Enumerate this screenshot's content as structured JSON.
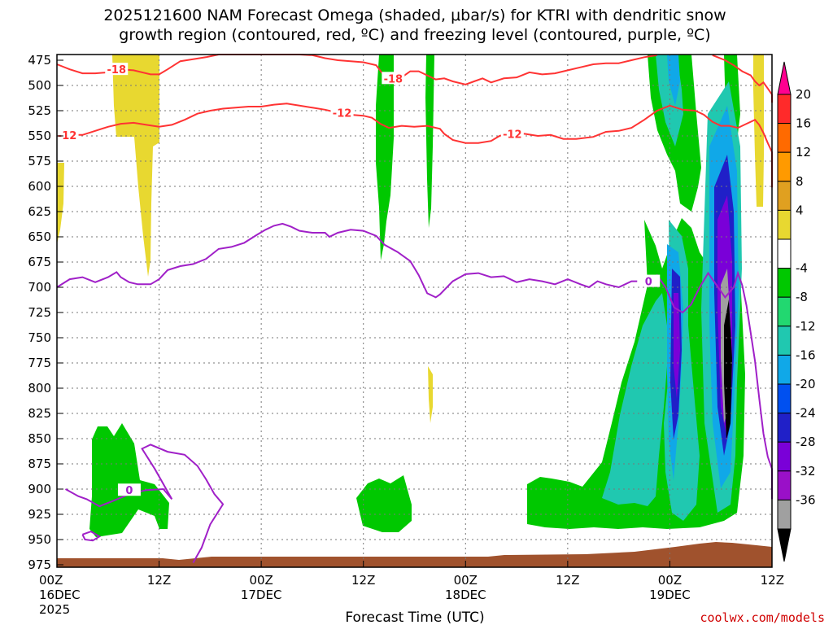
{
  "title": {
    "line1": "2025121600 NAM Forecast Omega (shaded, μbar/s) for KTRI with dendritic snow",
    "line2": "growth region (contoured, red, ºC) and freezing level (contoured, purple, ºC)"
  },
  "credit": "coolwx.com/models",
  "chart_data": {
    "type": "heatmap",
    "title": "2025121600 NAM Forecast Omega (shaded, μbar/s) for KTRI with dendritic snow growth region (contoured, red, ºC) and freezing level (contoured, purple, ºC)",
    "xlabel": "Forecast Time (UTC)",
    "ylabel": "Pressure (mb)",
    "x_range_hours": [
      0,
      84
    ],
    "y_range_mb": [
      975,
      475
    ],
    "y_ticks": [
      "475",
      "500",
      "525",
      "550",
      "575",
      "600",
      "625",
      "650",
      "675",
      "700",
      "725",
      "750",
      "775",
      "800",
      "825",
      "850",
      "875",
      "900",
      "925",
      "950",
      "975"
    ],
    "x_ticks": [
      {
        "hour": 0,
        "label": "00Z",
        "sub": "16DEC",
        "sub2": "2025"
      },
      {
        "hour": 12,
        "label": "12Z",
        "sub": "",
        "sub2": ""
      },
      {
        "hour": 24,
        "label": "00Z",
        "sub": "17DEC",
        "sub2": ""
      },
      {
        "hour": 36,
        "label": "12Z",
        "sub": "",
        "sub2": ""
      },
      {
        "hour": 48,
        "label": "00Z",
        "sub": "18DEC",
        "sub2": ""
      },
      {
        "hour": 60,
        "label": "12Z",
        "sub": "",
        "sub2": ""
      },
      {
        "hour": 72,
        "label": "00Z",
        "sub": "19DEC",
        "sub2": ""
      },
      {
        "hour": 84,
        "label": "12Z",
        "sub": "",
        "sub2": ""
      }
    ],
    "colorbar": {
      "labels": [
        "20",
        "16",
        "12",
        "8",
        "4",
        "-4",
        "-8",
        "-12",
        "-16",
        "-20",
        "-24",
        "-28",
        "-32",
        "-36"
      ],
      "colors": [
        "#ff0090",
        "#ff2a2a",
        "#ff6a00",
        "#ff9a00",
        "#e0a020",
        "#e8d830",
        "#ffffff",
        "#00c800",
        "#22d870",
        "#20c8b0",
        "#10a8e8",
        "#0050f0",
        "#2020c8",
        "#7a00d8",
        "#9a10c8",
        "#a0a0a0",
        "#000000"
      ]
    },
    "contours": {
      "dendritic_minus18": {
        "color": "#ff3333",
        "label": "-18",
        "points": [
          [
            0,
            479
          ],
          [
            1.5,
            484
          ],
          [
            3,
            488
          ],
          [
            4.5,
            488
          ],
          [
            6,
            487
          ],
          [
            7.5,
            484
          ],
          [
            9,
            485
          ],
          [
            11,
            489
          ],
          [
            12,
            489
          ],
          [
            13,
            484
          ],
          [
            14.5,
            476
          ],
          [
            16,
            474
          ],
          [
            17.5,
            472
          ],
          [
            19,
            469
          ],
          [
            21,
            466
          ],
          [
            22.5,
            466
          ],
          [
            24,
            466
          ],
          [
            25.5,
            467
          ],
          [
            27,
            466
          ],
          [
            28.5,
            467
          ],
          [
            30,
            470
          ],
          [
            31.5,
            473
          ],
          [
            33,
            475
          ],
          [
            34.5,
            476
          ],
          [
            36,
            477
          ],
          [
            37.5,
            480
          ],
          [
            38.5,
            491
          ],
          [
            39.5,
            495
          ],
          [
            40.5,
            492
          ],
          [
            41.5,
            486
          ],
          [
            42.5,
            486
          ],
          [
            43.5,
            490
          ],
          [
            44.5,
            494
          ],
          [
            45.5,
            493
          ],
          [
            46.5,
            496
          ],
          [
            48,
            499
          ],
          [
            49,
            496
          ],
          [
            50,
            493
          ],
          [
            51,
            497
          ],
          [
            52.5,
            493
          ],
          [
            54,
            492
          ],
          [
            55.5,
            487
          ],
          [
            57,
            489
          ],
          [
            58.5,
            488
          ],
          [
            60,
            485
          ],
          [
            61.5,
            482
          ],
          [
            63,
            479
          ],
          [
            64.5,
            478
          ],
          [
            66,
            478
          ],
          [
            67.5,
            475
          ],
          [
            69,
            472
          ],
          [
            70.5,
            470
          ]
        ],
        "label_at": [
          7,
          484
        ]
      },
      "dendritic_minus18_right": {
        "color": "#ff3333",
        "label": "",
        "points": [
          [
            77,
            470
          ],
          [
            78.5,
            475
          ],
          [
            79.5,
            480
          ],
          [
            80.5,
            486
          ],
          [
            81.5,
            490
          ],
          [
            82,
            496
          ],
          [
            82.5,
            500
          ],
          [
            83,
            497
          ],
          [
            83.5,
            503
          ],
          [
            84,
            509
          ],
          [
            84.5,
            514
          ],
          [
            85,
            516
          ],
          [
            85.5,
            517
          ]
        ],
        "label_at": []
      },
      "dendritic_minus12": {
        "color": "#ff3333",
        "label": "-12",
        "points": [
          [
            0,
            550
          ],
          [
            1.5,
            549
          ],
          [
            3,
            549
          ],
          [
            4.5,
            545
          ],
          [
            6,
            541
          ],
          [
            7.5,
            538
          ],
          [
            9,
            537
          ],
          [
            10.5,
            539
          ],
          [
            12,
            541
          ],
          [
            13.5,
            539
          ],
          [
            15,
            534
          ],
          [
            16.5,
            528
          ],
          [
            18,
            525
          ],
          [
            19.5,
            523
          ],
          [
            21,
            522
          ],
          [
            22.5,
            521
          ],
          [
            24,
            521
          ],
          [
            25.5,
            519
          ],
          [
            27,
            518
          ],
          [
            28.5,
            520
          ],
          [
            30,
            522
          ],
          [
            31.5,
            524
          ],
          [
            33,
            527
          ],
          [
            34.5,
            529
          ],
          [
            36,
            530
          ],
          [
            37,
            532
          ],
          [
            38,
            538
          ],
          [
            39,
            542
          ],
          [
            40.5,
            540
          ],
          [
            42,
            541
          ],
          [
            43.5,
            540
          ],
          [
            45,
            543
          ],
          [
            45.5,
            548
          ],
          [
            46.5,
            554
          ],
          [
            48,
            557
          ],
          [
            49.5,
            557
          ],
          [
            51,
            555
          ],
          [
            52,
            550
          ],
          [
            53.5,
            547
          ],
          [
            55,
            548
          ],
          [
            56.5,
            550
          ],
          [
            58,
            549
          ],
          [
            59.5,
            553
          ],
          [
            61,
            553
          ],
          [
            63,
            551
          ],
          [
            64.5,
            546
          ],
          [
            66,
            545
          ],
          [
            67.5,
            542
          ],
          [
            69,
            534
          ],
          [
            70.5,
            525
          ],
          [
            72,
            520
          ],
          [
            73.5,
            524
          ],
          [
            75,
            525
          ],
          [
            76,
            529
          ],
          [
            77,
            536
          ],
          [
            78,
            540
          ],
          [
            79,
            540
          ],
          [
            80,
            542
          ],
          [
            81,
            538
          ],
          [
            82,
            534
          ],
          [
            82.5,
            539
          ],
          [
            83,
            547
          ],
          [
            83.5,
            557
          ],
          [
            84,
            566
          ],
          [
            84.5,
            581
          ],
          [
            85,
            599
          ],
          [
            85.5,
            601
          ],
          [
            86,
            598
          ]
        ],
        "label_at": [
          33.5,
          527
        ]
      },
      "freezing_level_main": {
        "color": "#a020c8",
        "label": "0",
        "points": [
          [
            0,
            700
          ],
          [
            1.5,
            692
          ],
          [
            3,
            690
          ],
          [
            4.5,
            695
          ],
          [
            6,
            690
          ],
          [
            7,
            685
          ],
          [
            7.5,
            690
          ],
          [
            8.5,
            695
          ],
          [
            9.5,
            697
          ],
          [
            11,
            697
          ],
          [
            12,
            692
          ],
          [
            13,
            683
          ],
          [
            14.5,
            679
          ],
          [
            16,
            677
          ],
          [
            17.5,
            672
          ],
          [
            19,
            662
          ],
          [
            20.5,
            660
          ],
          [
            22,
            656
          ],
          [
            23.5,
            648
          ],
          [
            24.5,
            643
          ],
          [
            25.5,
            639
          ],
          [
            26.5,
            637
          ],
          [
            27.5,
            640
          ],
          [
            28.5,
            644
          ],
          [
            30,
            646
          ],
          [
            31.5,
            646
          ],
          [
            32,
            650
          ],
          [
            33,
            646
          ],
          [
            34.5,
            643
          ],
          [
            36,
            644
          ],
          [
            37.5,
            649
          ],
          [
            38.5,
            658
          ],
          [
            40,
            665
          ],
          [
            41.5,
            674
          ],
          [
            42.5,
            688
          ],
          [
            43.5,
            706
          ],
          [
            44.5,
            710
          ],
          [
            45,
            707
          ],
          [
            46.5,
            694
          ],
          [
            48,
            687
          ],
          [
            49.5,
            686
          ],
          [
            51,
            690
          ],
          [
            52.5,
            689
          ],
          [
            54,
            695
          ],
          [
            55.5,
            692
          ],
          [
            57,
            694
          ],
          [
            58.5,
            697
          ],
          [
            60,
            692
          ],
          [
            61.5,
            697
          ],
          [
            62.5,
            700
          ],
          [
            63.5,
            694
          ],
          [
            64.5,
            697
          ],
          [
            66,
            700
          ],
          [
            67.5,
            694
          ],
          [
            69,
            694
          ],
          [
            70,
            691
          ],
          [
            70.5,
            688
          ],
          [
            71.5,
            700
          ],
          [
            72.5,
            720
          ],
          [
            73.5,
            725
          ],
          [
            74.5,
            717
          ],
          [
            75.5,
            700
          ],
          [
            76.5,
            686
          ],
          [
            77.5,
            698
          ],
          [
            78.5,
            710
          ],
          [
            79.5,
            700
          ],
          [
            80,
            686
          ],
          [
            80.5,
            698
          ],
          [
            81,
            718
          ],
          [
            81.5,
            745
          ],
          [
            82,
            773
          ],
          [
            82.5,
            810
          ],
          [
            83,
            845
          ],
          [
            83.5,
            868
          ],
          [
            84,
            880
          ],
          [
            84.5,
            895
          ],
          [
            85,
            905
          ],
          [
            85.5,
            910
          ]
        ],
        "label_at": [
          69.5,
          694
        ]
      },
      "freezing_level_low": {
        "color": "#a020c8",
        "label": "0",
        "points": [
          [
            1,
            900
          ],
          [
            2.5,
            907
          ],
          [
            3.5,
            910
          ],
          [
            5,
            917
          ],
          [
            6.5,
            912
          ],
          [
            8.5,
            905
          ],
          [
            10.5,
            901
          ],
          [
            12.5,
            900
          ],
          [
            13.5,
            910
          ],
          [
            11.5,
            880
          ],
          [
            10,
            860
          ],
          [
            11,
            856
          ],
          [
            13,
            863
          ],
          [
            15,
            866
          ],
          [
            16.5,
            877
          ],
          [
            17.5,
            890
          ],
          [
            18.5,
            905
          ],
          [
            19.5,
            915
          ],
          [
            18,
            935
          ],
          [
            17,
            958
          ],
          [
            16,
            973
          ]
        ],
        "label_at": [
          8.5,
          901
        ]
      },
      "freezing_level_blob": {
        "color": "#a020c8",
        "label": "",
        "points": [
          [
            3,
            945
          ],
          [
            4,
            942
          ],
          [
            5,
            947
          ],
          [
            4.2,
            951
          ],
          [
            3.3,
            950
          ],
          [
            3,
            945
          ]
        ],
        "label_at": []
      }
    },
    "shaded_regions": [
      {
        "value_range": "4 to 8",
        "description": "weak descent, upper left"
      },
      {
        "value_range": "-4 to -8",
        "description": "weak ascent near 18Z Dec 16 and 12Z Dec 18"
      },
      {
        "value_range": "-8 to -36",
        "description": "strong ascent 12Z Dec 18 to 06Z Dec 19, max below -36 near 700-800 mb"
      }
    ],
    "terrain": {
      "color": "#a0522d"
    }
  }
}
